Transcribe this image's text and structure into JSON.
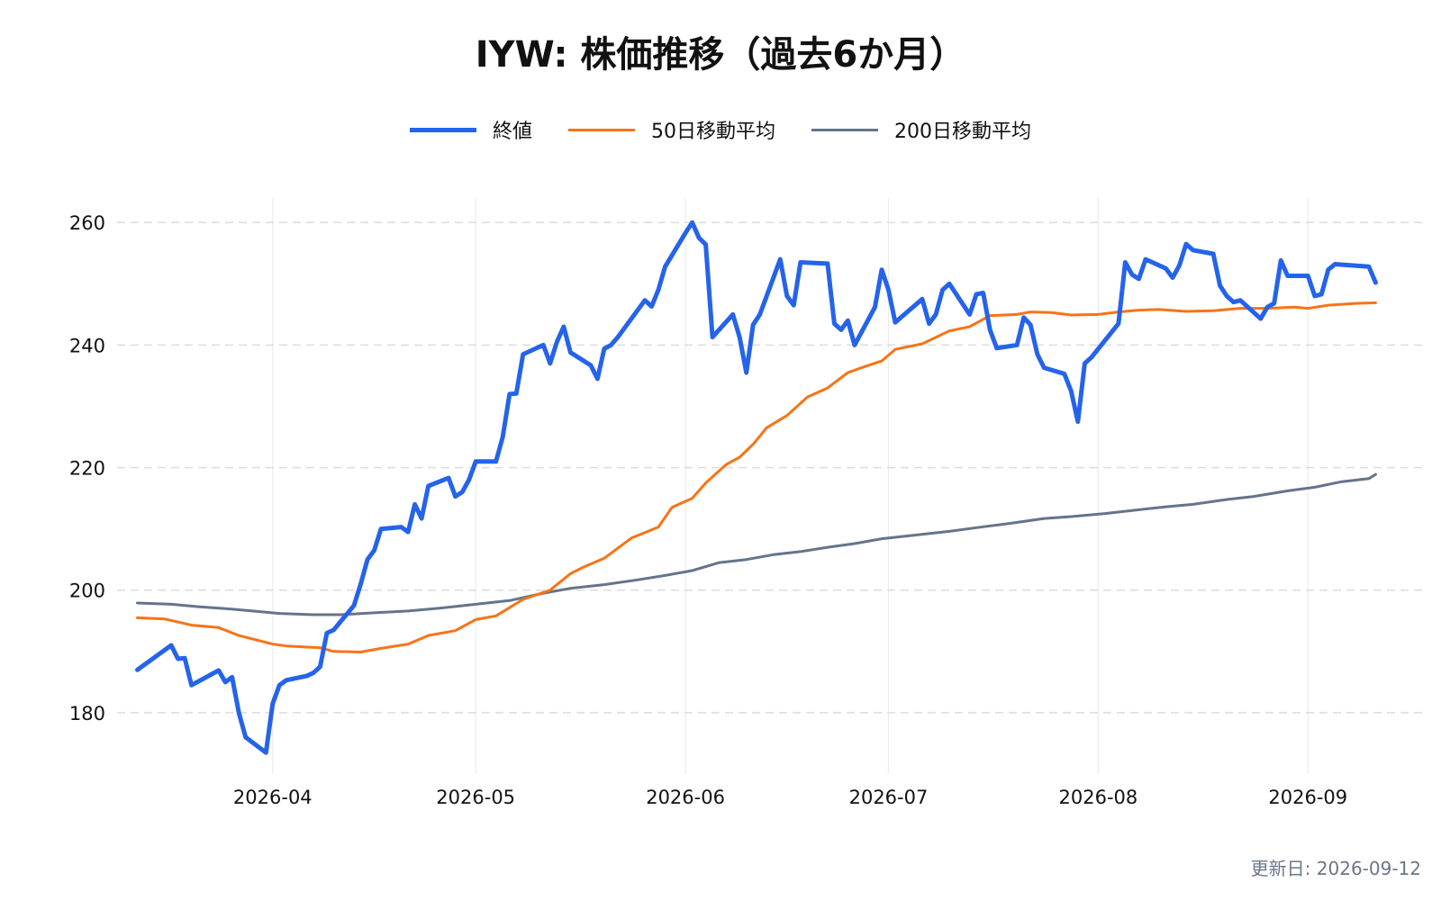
{
  "title": "IYW: 株価推移（過去6か月）",
  "footer": "更新日: 2026-09-12",
  "chart_data": {
    "type": "line",
    "title": "IYW: 株価推移（過去6か月）",
    "xlabel": "",
    "ylabel": "",
    "x_tick_labels": [
      "2026-04",
      "2026-05",
      "2026-06",
      "2026-07",
      "2026-08",
      "2026-09"
    ],
    "x_ticks": [
      "2026-04-01",
      "2026-05-01",
      "2026-06-01",
      "2026-07-01",
      "2026-08-01",
      "2026-09-01"
    ],
    "y_ticks": [
      180,
      200,
      220,
      240,
      260
    ],
    "xlim": [
      "2026-03-09",
      "2026-09-18"
    ],
    "ylim": [
      170,
      264
    ],
    "grid": true,
    "legend": "top-center",
    "series": [
      {
        "name": "終値",
        "color": "#2563eb",
        "points": [
          [
            "2026-03-12",
            187.0
          ],
          [
            "2026-03-17",
            191.0
          ],
          [
            "2026-03-18",
            188.8
          ],
          [
            "2026-03-19",
            188.9
          ],
          [
            "2026-03-20",
            184.5
          ],
          [
            "2026-03-23",
            186.3
          ],
          [
            "2026-03-24",
            186.9
          ],
          [
            "2026-03-25",
            185.0
          ],
          [
            "2026-03-26",
            185.8
          ],
          [
            "2026-03-27",
            180.0
          ],
          [
            "2026-03-28",
            176.0
          ],
          [
            "2026-03-31",
            173.5
          ],
          [
            "2026-04-01",
            181.5
          ],
          [
            "2026-04-02",
            184.5
          ],
          [
            "2026-04-03",
            185.3
          ],
          [
            "2026-04-06",
            186.0
          ],
          [
            "2026-04-07",
            186.5
          ],
          [
            "2026-04-08",
            187.5
          ],
          [
            "2026-04-09",
            193.0
          ],
          [
            "2026-04-10",
            193.5
          ],
          [
            "2026-04-13",
            197.5
          ],
          [
            "2026-04-14",
            201.0
          ],
          [
            "2026-04-15",
            205.0
          ],
          [
            "2026-04-16",
            206.5
          ],
          [
            "2026-04-17",
            210.0
          ],
          [
            "2026-04-20",
            210.3
          ],
          [
            "2026-04-21",
            209.5
          ],
          [
            "2026-04-22",
            214.0
          ],
          [
            "2026-04-23",
            211.7
          ],
          [
            "2026-04-24",
            217.0
          ],
          [
            "2026-04-27",
            218.3
          ],
          [
            "2026-04-28",
            215.3
          ],
          [
            "2026-04-29",
            216.0
          ],
          [
            "2026-04-30",
            218.0
          ],
          [
            "2026-05-01",
            221.0
          ],
          [
            "2026-05-04",
            221.0
          ],
          [
            "2026-05-05",
            225.0
          ],
          [
            "2026-05-06",
            232.0
          ],
          [
            "2026-05-07",
            232.1
          ],
          [
            "2026-05-08",
            238.5
          ],
          [
            "2026-05-11",
            240.0
          ],
          [
            "2026-05-12",
            237.0
          ],
          [
            "2026-05-13",
            240.5
          ],
          [
            "2026-05-14",
            243.0
          ],
          [
            "2026-05-15",
            238.8
          ],
          [
            "2026-05-18",
            236.7
          ],
          [
            "2026-05-19",
            234.5
          ],
          [
            "2026-05-20",
            239.4
          ],
          [
            "2026-05-21",
            240.0
          ],
          [
            "2026-05-22",
            241.3
          ],
          [
            "2026-05-26",
            247.3
          ],
          [
            "2026-05-27",
            246.3
          ],
          [
            "2026-05-28",
            249.0
          ],
          [
            "2026-05-29",
            252.8
          ],
          [
            "2026-06-01",
            258.3
          ],
          [
            "2026-06-02",
            260.0
          ],
          [
            "2026-06-03",
            257.5
          ],
          [
            "2026-06-04",
            256.4
          ],
          [
            "2026-06-05",
            241.3
          ],
          [
            "2026-06-08",
            245.0
          ],
          [
            "2026-06-09",
            241.3
          ],
          [
            "2026-06-10",
            235.5
          ],
          [
            "2026-06-11",
            243.3
          ],
          [
            "2026-06-12",
            245.0
          ],
          [
            "2026-06-15",
            254.0
          ],
          [
            "2026-06-16",
            248.0
          ],
          [
            "2026-06-17",
            246.5
          ],
          [
            "2026-06-18",
            253.5
          ],
          [
            "2026-06-22",
            253.3
          ],
          [
            "2026-06-23",
            243.5
          ],
          [
            "2026-06-24",
            242.5
          ],
          [
            "2026-06-25",
            244.0
          ],
          [
            "2026-06-26",
            240.0
          ],
          [
            "2026-06-29",
            246.2
          ],
          [
            "2026-06-30",
            252.3
          ],
          [
            "2026-07-01",
            249.0
          ],
          [
            "2026-07-02",
            243.7
          ],
          [
            "2026-07-06",
            247.5
          ],
          [
            "2026-07-07",
            243.5
          ],
          [
            "2026-07-08",
            245.0
          ],
          [
            "2026-07-09",
            249.0
          ],
          [
            "2026-07-10",
            250.0
          ],
          [
            "2026-07-13",
            245.0
          ],
          [
            "2026-07-14",
            248.3
          ],
          [
            "2026-07-15",
            248.5
          ],
          [
            "2026-07-16",
            242.5
          ],
          [
            "2026-07-17",
            239.5
          ],
          [
            "2026-07-20",
            240.0
          ],
          [
            "2026-07-21",
            244.5
          ],
          [
            "2026-07-22",
            243.3
          ],
          [
            "2026-07-23",
            238.5
          ],
          [
            "2026-07-24",
            236.3
          ],
          [
            "2026-07-27",
            235.3
          ],
          [
            "2026-07-28",
            232.5
          ],
          [
            "2026-07-29",
            227.5
          ],
          [
            "2026-07-30",
            237.0
          ],
          [
            "2026-07-31",
            238.0
          ],
          [
            "2026-08-04",
            243.5
          ],
          [
            "2026-08-05",
            253.5
          ],
          [
            "2026-08-06",
            251.5
          ],
          [
            "2026-08-07",
            250.8
          ],
          [
            "2026-08-08",
            254.0
          ],
          [
            "2026-08-11",
            252.5
          ],
          [
            "2026-08-12",
            251.0
          ],
          [
            "2026-08-13",
            253.0
          ],
          [
            "2026-08-14",
            256.5
          ],
          [
            "2026-08-15",
            255.5
          ],
          [
            "2026-08-18",
            254.9
          ],
          [
            "2026-08-19",
            249.7
          ],
          [
            "2026-08-20",
            248.0
          ],
          [
            "2026-08-21",
            247.0
          ],
          [
            "2026-08-22",
            247.3
          ],
          [
            "2026-08-25",
            244.3
          ],
          [
            "2026-08-26",
            246.2
          ],
          [
            "2026-08-27",
            246.8
          ],
          [
            "2026-08-28",
            253.8
          ],
          [
            "2026-08-29",
            251.3
          ],
          [
            "2026-09-01",
            251.3
          ],
          [
            "2026-09-02",
            248.0
          ],
          [
            "2026-09-03",
            248.3
          ],
          [
            "2026-09-04",
            252.3
          ],
          [
            "2026-09-05",
            253.2
          ],
          [
            "2026-09-10",
            252.8
          ],
          [
            "2026-09-11",
            250.2
          ]
        ]
      },
      {
        "name": "50日移動平均",
        "color": "#f97316",
        "points": [
          [
            "2026-03-12",
            195.5
          ],
          [
            "2026-03-16",
            195.3
          ],
          [
            "2026-03-20",
            194.3
          ],
          [
            "2026-03-24",
            193.9
          ],
          [
            "2026-03-27",
            192.6
          ],
          [
            "2026-04-01",
            191.2
          ],
          [
            "2026-04-03",
            190.9
          ],
          [
            "2026-04-08",
            190.6
          ],
          [
            "2026-04-10",
            190.0
          ],
          [
            "2026-04-14",
            189.9
          ],
          [
            "2026-04-17",
            190.5
          ],
          [
            "2026-04-21",
            191.2
          ],
          [
            "2026-04-24",
            192.6
          ],
          [
            "2026-04-28",
            193.4
          ],
          [
            "2026-05-01",
            195.2
          ],
          [
            "2026-05-04",
            195.8
          ],
          [
            "2026-05-08",
            198.5
          ],
          [
            "2026-05-12",
            200.0
          ],
          [
            "2026-05-15",
            202.7
          ],
          [
            "2026-05-17",
            203.8
          ],
          [
            "2026-05-20",
            205.2
          ],
          [
            "2026-05-24",
            208.5
          ],
          [
            "2026-05-28",
            210.3
          ],
          [
            "2026-05-30",
            213.5
          ],
          [
            "2026-06-02",
            215.0
          ],
          [
            "2026-06-04",
            217.5
          ],
          [
            "2026-06-07",
            220.5
          ],
          [
            "2026-06-09",
            221.7
          ],
          [
            "2026-06-11",
            223.8
          ],
          [
            "2026-06-13",
            226.5
          ],
          [
            "2026-06-16",
            228.5
          ],
          [
            "2026-06-19",
            231.5
          ],
          [
            "2026-06-22",
            233.0
          ],
          [
            "2026-06-25",
            235.5
          ],
          [
            "2026-06-27",
            236.3
          ],
          [
            "2026-06-30",
            237.4
          ],
          [
            "2026-07-02",
            239.3
          ],
          [
            "2026-07-06",
            240.2
          ],
          [
            "2026-07-10",
            242.3
          ],
          [
            "2026-07-13",
            243.0
          ],
          [
            "2026-07-16",
            244.8
          ],
          [
            "2026-07-20",
            245.0
          ],
          [
            "2026-07-22",
            245.4
          ],
          [
            "2026-07-25",
            245.3
          ],
          [
            "2026-07-28",
            244.9
          ],
          [
            "2026-08-01",
            245.0
          ],
          [
            "2026-08-04",
            245.4
          ],
          [
            "2026-08-07",
            245.7
          ],
          [
            "2026-08-10",
            245.8
          ],
          [
            "2026-08-14",
            245.5
          ],
          [
            "2026-08-18",
            245.6
          ],
          [
            "2026-08-22",
            246.0
          ],
          [
            "2026-08-26",
            246.0
          ],
          [
            "2026-08-30",
            246.2
          ],
          [
            "2026-09-01",
            246.0
          ],
          [
            "2026-09-04",
            246.5
          ],
          [
            "2026-09-08",
            246.8
          ],
          [
            "2026-09-11",
            246.9
          ]
        ]
      },
      {
        "name": "200日移動平均",
        "color": "#64748b",
        "points": [
          [
            "2026-03-12",
            197.9
          ],
          [
            "2026-03-17",
            197.7
          ],
          [
            "2026-03-21",
            197.3
          ],
          [
            "2026-03-25",
            197.0
          ],
          [
            "2026-03-29",
            196.6
          ],
          [
            "2026-04-02",
            196.2
          ],
          [
            "2026-04-07",
            196.0
          ],
          [
            "2026-04-11",
            196.0
          ],
          [
            "2026-04-16",
            196.3
          ],
          [
            "2026-04-21",
            196.6
          ],
          [
            "2026-04-26",
            197.1
          ],
          [
            "2026-05-01",
            197.7
          ],
          [
            "2026-05-06",
            198.3
          ],
          [
            "2026-05-11",
            199.5
          ],
          [
            "2026-05-15",
            200.3
          ],
          [
            "2026-05-20",
            200.9
          ],
          [
            "2026-05-25",
            201.7
          ],
          [
            "2026-05-29",
            202.4
          ],
          [
            "2026-06-02",
            203.2
          ],
          [
            "2026-06-06",
            204.5
          ],
          [
            "2026-06-10",
            205.0
          ],
          [
            "2026-06-14",
            205.8
          ],
          [
            "2026-06-18",
            206.3
          ],
          [
            "2026-06-22",
            207.0
          ],
          [
            "2026-06-26",
            207.6
          ],
          [
            "2026-06-30",
            208.4
          ],
          [
            "2026-07-05",
            209.0
          ],
          [
            "2026-07-10",
            209.6
          ],
          [
            "2026-07-14",
            210.2
          ],
          [
            "2026-07-19",
            210.9
          ],
          [
            "2026-07-24",
            211.7
          ],
          [
            "2026-07-28",
            212.0
          ],
          [
            "2026-08-02",
            212.5
          ],
          [
            "2026-08-06",
            213.0
          ],
          [
            "2026-08-11",
            213.6
          ],
          [
            "2026-08-15",
            214.0
          ],
          [
            "2026-08-20",
            214.8
          ],
          [
            "2026-08-24",
            215.3
          ],
          [
            "2026-08-29",
            216.2
          ],
          [
            "2026-09-02",
            216.8
          ],
          [
            "2026-09-06",
            217.7
          ],
          [
            "2026-09-10",
            218.2
          ],
          [
            "2026-09-11",
            218.9
          ]
        ]
      }
    ]
  }
}
